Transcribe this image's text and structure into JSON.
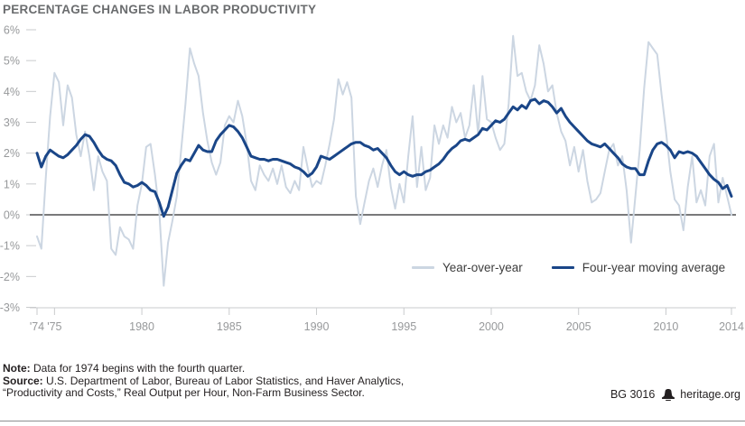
{
  "title": "PERCENTAGE CHANGES IN LABOR PRODUCTIVITY",
  "colors": {
    "yoy_line": "#ccd6e2",
    "ma_line": "#1a4688",
    "zero_line": "#4d4d4f",
    "grid": "#c9cbcd",
    "axis_text": "#97999b",
    "title_text": "#6a6c6e",
    "footer_text": "#231f20"
  },
  "chart_data": {
    "type": "line",
    "title": "PERCENTAGE CHANGES IN LABOR PRODUCTIVITY",
    "x_unit": "quarters from 1974 Q4 through 2014",
    "ylim": [
      -3,
      6
    ],
    "grid": "off",
    "zero_line": true,
    "legend_position": "inside-bottom-right",
    "y_ticks": [
      {
        "label": "6%",
        "value": 6
      },
      {
        "label": "5%",
        "value": 5
      },
      {
        "label": "4%",
        "value": 4
      },
      {
        "label": "3%",
        "value": 3
      },
      {
        "label": "2%",
        "value": 2
      },
      {
        "label": "1%",
        "value": 1
      },
      {
        "label": "0%",
        "value": 0
      },
      {
        "label": "-1%",
        "value": -1
      },
      {
        "label": "-2%",
        "value": -2
      },
      {
        "label": "-3%",
        "value": -3
      }
    ],
    "x_ticks": [
      {
        "label": "'74",
        "index": 0
      },
      {
        "label": "'75",
        "index": 4
      },
      {
        "label": "1980",
        "index": 24
      },
      {
        "label": "1985",
        "index": 44
      },
      {
        "label": "1990",
        "index": 64
      },
      {
        "label": "1995",
        "index": 84
      },
      {
        "label": "2000",
        "index": 104
      },
      {
        "label": "2005",
        "index": 124
      },
      {
        "label": "2010",
        "index": 144
      },
      {
        "label": "2014",
        "index": 159
      }
    ],
    "series": [
      {
        "name": "Year-over-year",
        "color": "#ccd6e2",
        "width": 2,
        "values": [
          -0.7,
          -1.1,
          1.2,
          3.2,
          4.6,
          4.3,
          2.9,
          4.2,
          3.8,
          2.6,
          1.9,
          2.7,
          1.9,
          0.8,
          1.9,
          1.4,
          1.1,
          -1.1,
          -1.3,
          -0.4,
          -0.7,
          -0.8,
          -1.1,
          0.3,
          1.0,
          2.2,
          2.3,
          1.3,
          0.1,
          -2.3,
          -0.9,
          -0.2,
          0.6,
          2.1,
          3.6,
          5.4,
          4.9,
          4.5,
          3.3,
          2.4,
          1.7,
          1.3,
          1.7,
          2.9,
          3.2,
          3.0,
          3.7,
          3.2,
          2.3,
          1.1,
          0.8,
          1.6,
          1.3,
          1.1,
          1.5,
          1.0,
          1.6,
          0.9,
          0.7,
          1.1,
          0.8,
          2.2,
          1.5,
          0.9,
          1.1,
          1.0,
          1.6,
          2.3,
          3.1,
          4.4,
          3.9,
          4.3,
          3.8,
          0.6,
          -0.3,
          0.4,
          1.1,
          1.5,
          0.9,
          1.6,
          2.1,
          0.9,
          0.2,
          1.0,
          0.4,
          1.9,
          3.2,
          0.9,
          2.2,
          0.8,
          1.2,
          2.9,
          2.3,
          2.9,
          2.5,
          3.5,
          3.0,
          3.3,
          2.5,
          2.9,
          4.2,
          2.6,
          4.5,
          3.1,
          3.0,
          2.5,
          2.1,
          2.3,
          3.6,
          5.8,
          4.5,
          4.6,
          4.0,
          3.7,
          4.2,
          5.5,
          4.9,
          4.0,
          4.2,
          3.3,
          2.7,
          2.4,
          1.6,
          2.2,
          1.4,
          2.1,
          1.1,
          0.4,
          0.5,
          0.7,
          1.4,
          2.1,
          2.3,
          1.6,
          1.9,
          0.8,
          -0.9,
          0.6,
          2.1,
          4.1,
          5.6,
          5.4,
          5.2,
          3.9,
          2.7,
          1.4,
          0.5,
          0.3,
          -0.5,
          0.9,
          1.9,
          0.4,
          0.8,
          0.3,
          1.9,
          2.3,
          0.4,
          1.2,
          0.6,
          0.0
        ]
      },
      {
        "name": "Four-year moving average",
        "color": "#1a4688",
        "width": 3,
        "values": [
          2.0,
          1.55,
          1.9,
          2.1,
          2.0,
          1.9,
          1.85,
          1.95,
          2.1,
          2.25,
          2.45,
          2.6,
          2.55,
          2.35,
          2.1,
          1.9,
          1.8,
          1.75,
          1.6,
          1.3,
          1.05,
          1.0,
          0.9,
          0.95,
          1.05,
          0.95,
          0.8,
          0.75,
          0.4,
          -0.05,
          0.25,
          0.8,
          1.35,
          1.6,
          1.8,
          1.75,
          2.0,
          2.25,
          2.1,
          2.05,
          2.05,
          2.4,
          2.6,
          2.75,
          2.9,
          2.85,
          2.7,
          2.5,
          2.2,
          1.9,
          1.85,
          1.8,
          1.8,
          1.75,
          1.8,
          1.8,
          1.75,
          1.7,
          1.65,
          1.55,
          1.5,
          1.4,
          1.25,
          1.35,
          1.55,
          1.9,
          1.85,
          1.8,
          1.9,
          2.0,
          2.1,
          2.2,
          2.3,
          2.35,
          2.35,
          2.25,
          2.2,
          2.1,
          2.15,
          2.0,
          1.85,
          1.6,
          1.4,
          1.3,
          1.4,
          1.3,
          1.25,
          1.3,
          1.3,
          1.4,
          1.45,
          1.55,
          1.65,
          1.8,
          2.0,
          2.15,
          2.25,
          2.4,
          2.45,
          2.4,
          2.5,
          2.6,
          2.8,
          2.75,
          2.9,
          3.05,
          3.0,
          3.1,
          3.3,
          3.5,
          3.4,
          3.55,
          3.45,
          3.7,
          3.75,
          3.6,
          3.7,
          3.65,
          3.5,
          3.3,
          3.45,
          3.2,
          3.0,
          2.85,
          2.7,
          2.55,
          2.4,
          2.3,
          2.25,
          2.2,
          2.3,
          2.15,
          2.0,
          1.85,
          1.65,
          1.55,
          1.5,
          1.5,
          1.3,
          1.3,
          1.75,
          2.1,
          2.3,
          2.35,
          2.25,
          2.1,
          1.85,
          2.05,
          2.0,
          2.05,
          2.0,
          1.9,
          1.7,
          1.5,
          1.3,
          1.15,
          1.05,
          0.85,
          0.95,
          0.6
        ]
      }
    ]
  },
  "footer": {
    "note_label": "Note:",
    "note_text": " Data for 1974 begins with the fourth quarter.",
    "source_label": "Source:",
    "source_line1": " U.S. Department of Labor, Bureau of Labor Statistics, and Haver Analytics,",
    "source_line2": "“Productivity and Costs,” Real Output per Hour, Non-Farm Business Sector.",
    "doc_id": "BG 3016",
    "site": "heritage.org"
  }
}
